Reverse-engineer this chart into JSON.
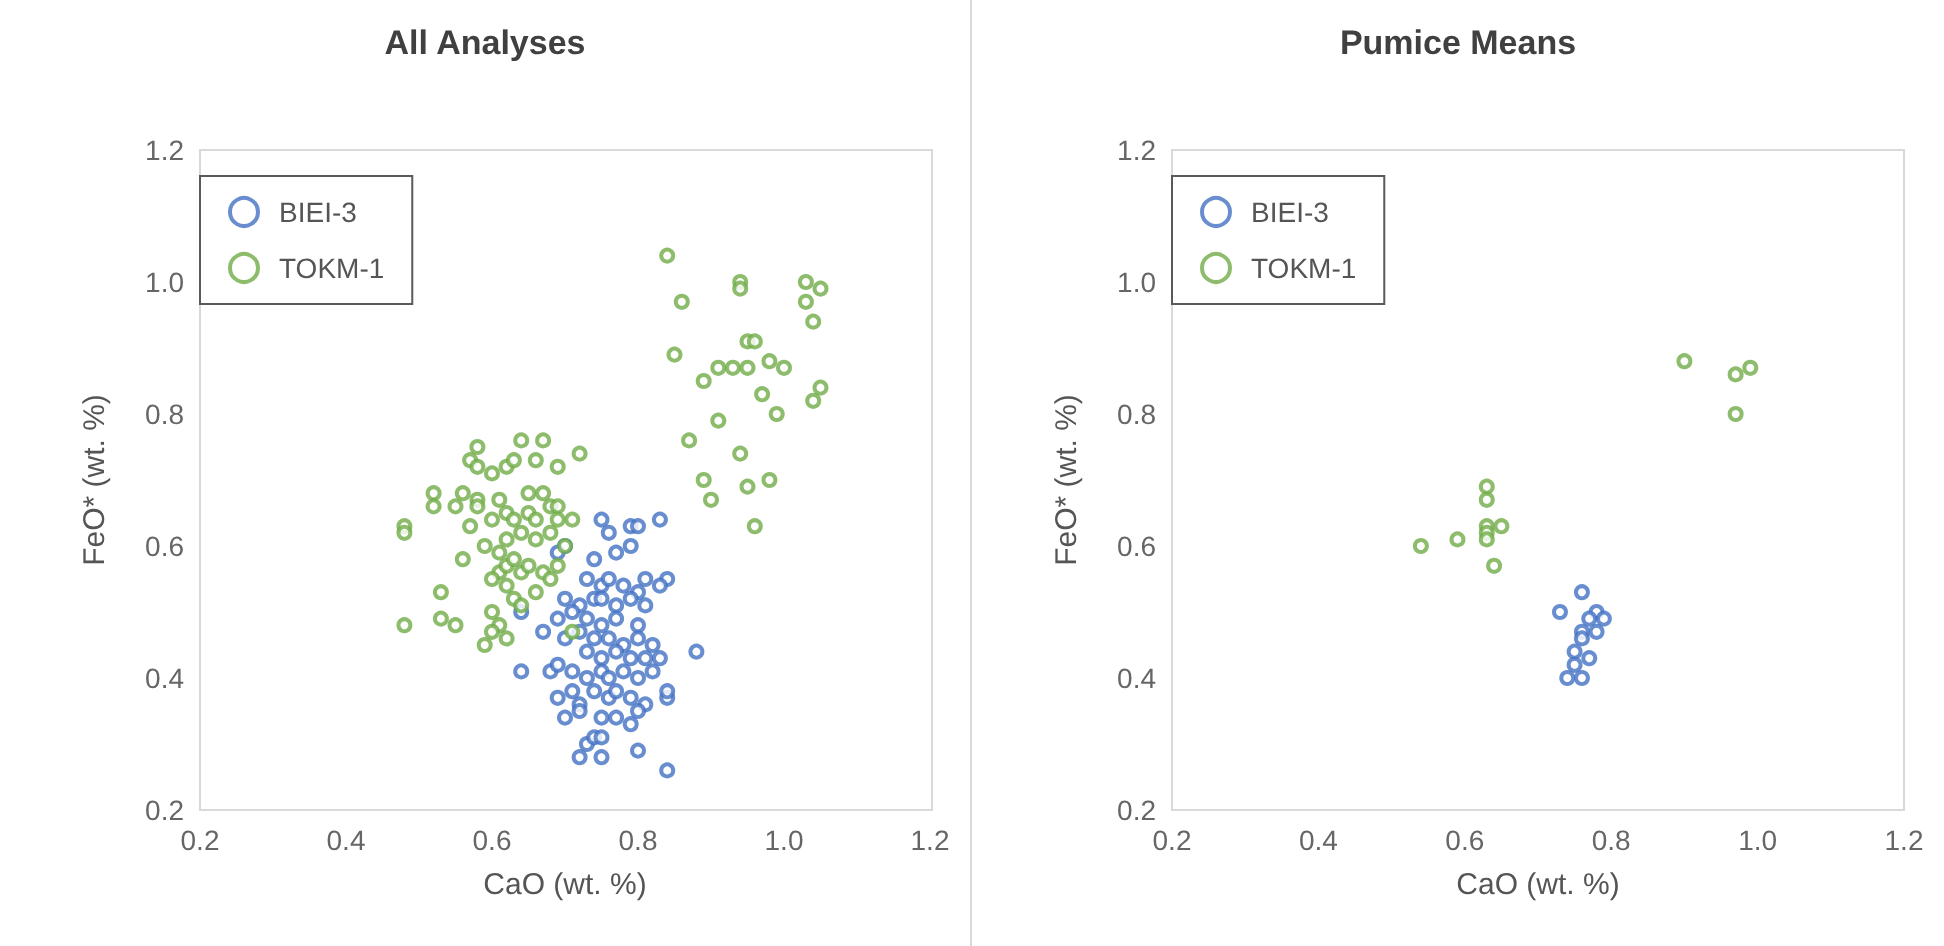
{
  "chart_data": [
    {
      "type": "scatter",
      "title": "All Analyses",
      "xlabel": "CaO (wt. %)",
      "ylabel": "FeO* (wt. %)",
      "xlim": [
        0.2,
        1.2
      ],
      "xticks": [
        {
          "value": 0.2,
          "label": "0.2"
        },
        {
          "value": 0.4,
          "label": "0.4"
        },
        {
          "value": 0.6,
          "label": "0.6"
        },
        {
          "value": 0.8,
          "label": "0.8"
        },
        {
          "value": 1.0,
          "label": "1.0"
        },
        {
          "value": 1.2,
          "label": "1.2"
        }
      ],
      "ylim": [
        0.2,
        1.2
      ],
      "yticks": [
        {
          "value": 0.2,
          "label": "0.2"
        },
        {
          "value": 0.4,
          "label": "0.4"
        },
        {
          "value": 0.6,
          "label": "0.6"
        },
        {
          "value": 0.8,
          "label": "0.8"
        },
        {
          "value": 1.0,
          "label": "1.0"
        },
        {
          "value": 1.2,
          "label": "1.2"
        }
      ],
      "grid": false,
      "legend": "top left",
      "marker": "circle",
      "series": [
        {
          "name": "BIEI-3",
          "color": "#4472c4",
          "x": [
            0.75,
            0.76,
            0.79,
            0.8,
            0.83,
            0.79,
            0.7,
            0.74,
            0.77,
            0.69,
            0.73,
            0.75,
            0.76,
            0.78,
            0.81,
            0.84,
            0.83,
            0.8,
            0.7,
            0.72,
            0.74,
            0.75,
            0.77,
            0.79,
            0.81,
            0.64,
            0.69,
            0.71,
            0.73,
            0.75,
            0.77,
            0.8,
            0.67,
            0.7,
            0.72,
            0.74,
            0.76,
            0.78,
            0.8,
            0.82,
            0.73,
            0.75,
            0.77,
            0.79,
            0.81,
            0.83,
            0.88,
            0.64,
            0.68,
            0.69,
            0.71,
            0.73,
            0.75,
            0.76,
            0.78,
            0.8,
            0.82,
            0.69,
            0.71,
            0.72,
            0.74,
            0.76,
            0.77,
            0.79,
            0.81,
            0.84,
            0.84,
            0.7,
            0.72,
            0.75,
            0.77,
            0.79,
            0.8,
            0.73,
            0.74,
            0.75,
            0.72,
            0.75,
            0.8,
            0.84
          ],
          "values": [
            0.64,
            0.62,
            0.63,
            0.63,
            0.64,
            0.6,
            0.6,
            0.58,
            0.59,
            0.59,
            0.55,
            0.54,
            0.55,
            0.54,
            0.55,
            0.55,
            0.54,
            0.53,
            0.52,
            0.51,
            0.52,
            0.52,
            0.51,
            0.52,
            0.51,
            0.5,
            0.49,
            0.5,
            0.49,
            0.48,
            0.49,
            0.48,
            0.47,
            0.46,
            0.47,
            0.46,
            0.46,
            0.45,
            0.46,
            0.45,
            0.44,
            0.43,
            0.44,
            0.43,
            0.43,
            0.43,
            0.44,
            0.41,
            0.41,
            0.42,
            0.41,
            0.4,
            0.41,
            0.4,
            0.41,
            0.4,
            0.41,
            0.37,
            0.38,
            0.36,
            0.38,
            0.37,
            0.38,
            0.37,
            0.36,
            0.37,
            0.38,
            0.34,
            0.35,
            0.34,
            0.34,
            0.33,
            0.35,
            0.3,
            0.31,
            0.31,
            0.28,
            0.28,
            0.29,
            0.26
          ]
        },
        {
          "name": "TOKM-1",
          "color": "#70ad47",
          "x": [
            0.84,
            0.94,
            0.94,
            1.03,
            1.05,
            1.03,
            1.04,
            0.86,
            0.85,
            0.95,
            0.96,
            0.89,
            0.91,
            0.93,
            0.95,
            0.98,
            1.0,
            0.97,
            1.05,
            1.04,
            0.99,
            0.91,
            0.87,
            0.94,
            0.89,
            0.9,
            0.95,
            0.98,
            0.96,
            0.58,
            0.64,
            0.67,
            0.57,
            0.58,
            0.6,
            0.62,
            0.63,
            0.66,
            0.69,
            0.72,
            0.52,
            0.56,
            0.58,
            0.61,
            0.65,
            0.67,
            0.68,
            0.52,
            0.55,
            0.58,
            0.62,
            0.65,
            0.69,
            0.48,
            0.48,
            0.57,
            0.6,
            0.63,
            0.66,
            0.69,
            0.71,
            0.56,
            0.59,
            0.61,
            0.62,
            0.64,
            0.66,
            0.68,
            0.7,
            0.61,
            0.62,
            0.63,
            0.64,
            0.65,
            0.67,
            0.69,
            0.6,
            0.62,
            0.53,
            0.63,
            0.64,
            0.66,
            0.68,
            0.53,
            0.55,
            0.48,
            0.6,
            0.61,
            0.6,
            0.62,
            0.59,
            0.71
          ],
          "values": [
            1.04,
            1.0,
            0.99,
            1.0,
            0.99,
            0.97,
            0.94,
            0.97,
            0.89,
            0.91,
            0.91,
            0.85,
            0.87,
            0.87,
            0.87,
            0.88,
            0.87,
            0.83,
            0.84,
            0.82,
            0.8,
            0.79,
            0.76,
            0.74,
            0.7,
            0.67,
            0.69,
            0.7,
            0.63,
            0.75,
            0.76,
            0.76,
            0.73,
            0.72,
            0.71,
            0.72,
            0.73,
            0.73,
            0.72,
            0.74,
            0.68,
            0.68,
            0.67,
            0.67,
            0.68,
            0.68,
            0.66,
            0.66,
            0.66,
            0.66,
            0.65,
            0.65,
            0.66,
            0.63,
            0.62,
            0.63,
            0.64,
            0.64,
            0.64,
            0.64,
            0.64,
            0.58,
            0.6,
            0.59,
            0.61,
            0.62,
            0.61,
            0.62,
            0.6,
            0.56,
            0.57,
            0.58,
            0.56,
            0.57,
            0.56,
            0.57,
            0.55,
            0.54,
            0.53,
            0.52,
            0.51,
            0.53,
            0.55,
            0.49,
            0.48,
            0.48,
            0.5,
            0.48,
            0.47,
            0.46,
            0.45,
            0.47
          ]
        }
      ]
    },
    {
      "type": "scatter",
      "title": "Pumice Means",
      "xlabel": "CaO (wt. %)",
      "ylabel": "FeO* (wt. %)",
      "xlim": [
        0.2,
        1.2
      ],
      "xticks": [
        {
          "value": 0.2,
          "label": "0.2"
        },
        {
          "value": 0.4,
          "label": "0.4"
        },
        {
          "value": 0.6,
          "label": "0.6"
        },
        {
          "value": 0.8,
          "label": "0.8"
        },
        {
          "value": 1.0,
          "label": "1.0"
        },
        {
          "value": 1.2,
          "label": "1.2"
        }
      ],
      "ylim": [
        0.2,
        1.2
      ],
      "yticks": [
        {
          "value": 0.2,
          "label": "0.2"
        },
        {
          "value": 0.4,
          "label": "0.4"
        },
        {
          "value": 0.6,
          "label": "0.6"
        },
        {
          "value": 0.8,
          "label": "0.8"
        },
        {
          "value": 1.0,
          "label": "1.0"
        },
        {
          "value": 1.2,
          "label": "1.2"
        }
      ],
      "grid": false,
      "legend": "top left",
      "marker": "circle",
      "series": [
        {
          "name": "BIEI-3",
          "color": "#4472c4",
          "x": [
            0.76,
            0.73,
            0.78,
            0.79,
            0.77,
            0.78,
            0.76,
            0.76,
            0.75,
            0.75,
            0.77,
            0.74,
            0.76
          ],
          "values": [
            0.53,
            0.5,
            0.5,
            0.49,
            0.49,
            0.47,
            0.47,
            0.46,
            0.44,
            0.42,
            0.43,
            0.4,
            0.4
          ]
        },
        {
          "name": "TOKM-1",
          "color": "#70ad47",
          "x": [
            0.9,
            0.97,
            0.99,
            0.97,
            0.63,
            0.63,
            0.63,
            0.63,
            0.65,
            0.63,
            0.64,
            0.59,
            0.54
          ],
          "values": [
            0.88,
            0.86,
            0.87,
            0.8,
            0.69,
            0.67,
            0.63,
            0.62,
            0.63,
            0.61,
            0.57,
            0.61,
            0.6
          ]
        }
      ]
    }
  ]
}
